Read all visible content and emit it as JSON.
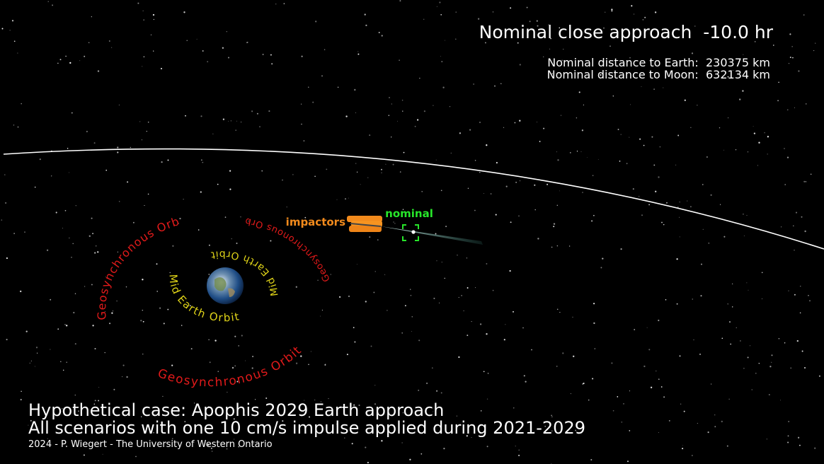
{
  "header": {
    "title": "Nominal close approach  -10.0 hr",
    "distances": [
      "Nominal distance to Earth:  230375 km",
      "Nominal distance to Moon:  632134 km"
    ]
  },
  "labels": {
    "impactors": "impactors",
    "nominal": "nominal"
  },
  "orbits": {
    "geosynchronous": [
      "Geosynchronous Orbit",
      "Geosynchronous Orbit",
      "Geosynchronous Orbit"
    ],
    "mid_earth": [
      "Mid Earth Orbit",
      "Mid Earth Orbit"
    ]
  },
  "footer": {
    "lines": [
      "Hypothetical case: Apophis 2029 Earth approach",
      "All scenarios with one 10 cm/s impulse applied during 2021-2029"
    ],
    "credit": "2024 - P. Wiegert - The University of Western Ontario"
  }
}
